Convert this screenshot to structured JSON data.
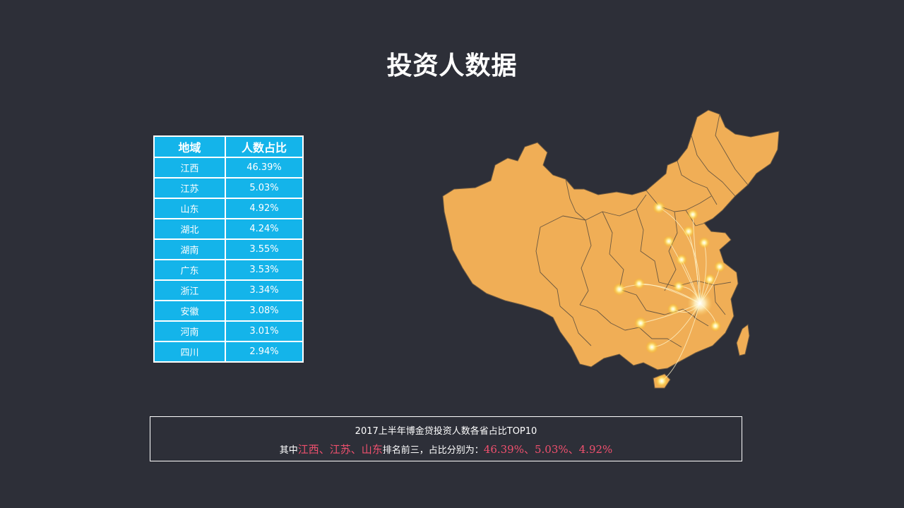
{
  "title": "投资人数据",
  "table": {
    "headers": [
      "地域",
      "人数占比"
    ],
    "rows": [
      [
        "江西",
        "46.39%"
      ],
      [
        "江苏",
        "5.03%"
      ],
      [
        "山东",
        "4.92%"
      ],
      [
        "湖北",
        "4.24%"
      ],
      [
        "湖南",
        "3.55%"
      ],
      [
        "广东",
        "3.53%"
      ],
      [
        "浙江",
        "3.34%"
      ],
      [
        "安徽",
        "3.08%"
      ],
      [
        "河南",
        "3.01%"
      ],
      [
        "四川",
        "2.94%"
      ]
    ]
  },
  "summary": {
    "line1": "2017上半年博金贷投资人数各省占比TOP10",
    "prefix": "其中",
    "p1": "江西、",
    "p2": "江苏、",
    "p3": "山东",
    "mid": "排名前三，占比分别为：",
    "values": "46.39%、5.03%、4.92%"
  },
  "colors": {
    "background": "#2d2f38",
    "table": "#14b4ea",
    "map": "#f0ae56",
    "highlight": "#f0506e"
  }
}
